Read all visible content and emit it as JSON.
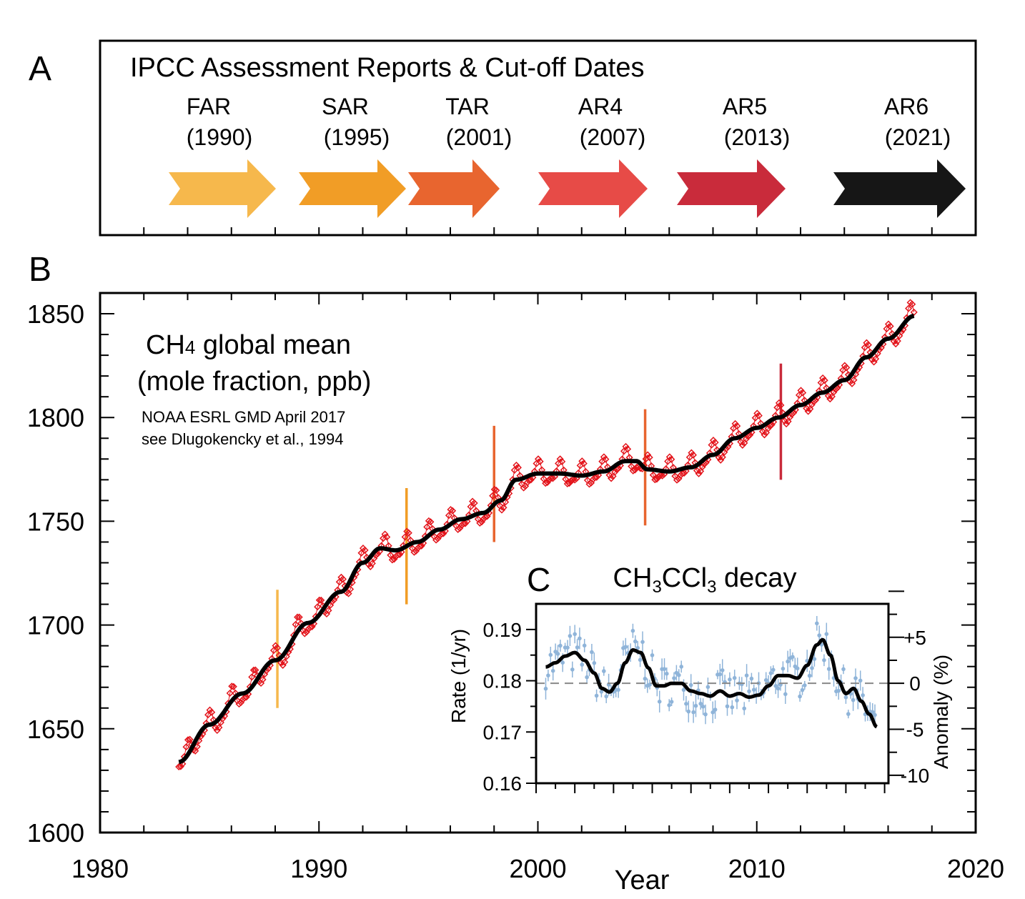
{
  "panel_letters": {
    "a": "A",
    "b": "B",
    "c": "C"
  },
  "panel_a": {
    "title": "IPCC Assessment Reports & Cut-off Dates",
    "reports": [
      {
        "name": "FAR",
        "year_label": "(1990)",
        "color": "#f6b84c"
      },
      {
        "name": "SAR",
        "year_label": "(1995)",
        "color": "#f19d26"
      },
      {
        "name": "TAR",
        "year_label": "(2001)",
        "color": "#e8652f"
      },
      {
        "name": "AR4",
        "year_label": "(2007)",
        "color": "#e74b47"
      },
      {
        "name": "AR5",
        "year_label": "(2013)",
        "color": "#c92b3b"
      },
      {
        "name": "AR6",
        "year_label": "(2021)",
        "color": "#161616"
      }
    ]
  },
  "chart_data": [
    {
      "type": "line",
      "title_main": "CH",
      "title_sub": "4",
      "title_rest": " global mean",
      "subtitle": "(mole fraction, ppb)",
      "notes": [
        "NOAA ESRL GMD April 2017",
        "see Dlugokencky et al., 1994"
      ],
      "xlabel": "Year",
      "xlim": [
        1980,
        2020
      ],
      "ylim": [
        1600,
        1860
      ],
      "x_ticks": [
        1980,
        1990,
        2000,
        2010,
        2020
      ],
      "y_ticks": [
        1600,
        1650,
        1700,
        1750,
        1800,
        1850
      ],
      "colors": {
        "monthly": "#e3141b",
        "trend": "#000000"
      },
      "trend_knots": {
        "x": [
          1983.6,
          1985,
          1986.5,
          1988,
          1989.5,
          1991,
          1992,
          1992.8,
          1993.5,
          1994.5,
          1995.5,
          1996.5,
          1997.5,
          1998.3,
          1999,
          2000,
          2001,
          2002,
          2003,
          2004,
          2004.5,
          2005,
          2006,
          2007,
          2008,
          2009,
          2010,
          2011,
          2012,
          2013,
          2014,
          2015,
          2016,
          2017.2
        ],
        "y": [
          1634,
          1652,
          1667,
          1683,
          1701,
          1716,
          1730,
          1737,
          1736,
          1740,
          1746,
          1751,
          1754,
          1760,
          1770,
          1773,
          1773,
          1772,
          1774,
          1779,
          1779,
          1775,
          1774,
          1776,
          1782,
          1790,
          1795,
          1800,
          1806,
          1812,
          1818,
          1829,
          1838,
          1849
        ]
      },
      "cutoff_markers": [
        {
          "x": 1988.1,
          "y_from": 1660,
          "y_to": 1717,
          "color": "#f6b84c"
        },
        {
          "x": 1994.0,
          "y_from": 1710,
          "y_to": 1766,
          "color": "#f19d26"
        },
        {
          "x": 1998.0,
          "y_from": 1740,
          "y_to": 1796,
          "color": "#e8652f"
        },
        {
          "x": 2004.9,
          "y_from": 1748,
          "y_to": 1804,
          "color": "#e8652f"
        },
        {
          "x": 2011.1,
          "y_from": 1770,
          "y_to": 1826,
          "color": "#c92b3b"
        }
      ]
    },
    {
      "type": "line",
      "title_main": "CH",
      "title_sub1": "3",
      "title_mid": "CCl",
      "title_sub2": "3",
      "title_rest": " decay",
      "ylabel_left": "Rate (1/yr)",
      "ylabel_right": "Anomaly (%)",
      "xlim": [
        1998,
        2016.2
      ],
      "ylim": [
        0.16,
        0.195
      ],
      "y_ticks_left": [
        "0.16",
        "0.17",
        "0.18",
        "0.19"
      ],
      "y_ticks_right": [
        "+5",
        "0",
        "-5",
        "-10"
      ],
      "reference_line": 0.1795,
      "colors": {
        "points": "#8fb4d9",
        "smooth": "#000000",
        "reference": "#888888"
      },
      "smooth_series": {
        "x": [
          1998.5,
          1999,
          1999.5,
          2000,
          2000.5,
          2001,
          2001.4,
          2001.8,
          2002.2,
          2002.6,
          2003,
          2003.4,
          2003.8,
          2004.2,
          2004.6,
          2005,
          2005.5,
          2006,
          2006.5,
          2007,
          2007.5,
          2008,
          2008.5,
          2009,
          2009.5,
          2010,
          2010.5,
          2011,
          2011.5,
          2012,
          2012.5,
          2012.8,
          2013.2,
          2013.6,
          2014,
          2014.4,
          2014.8,
          2015.2,
          2015.6
        ],
        "y": [
          0.1827,
          0.1835,
          0.1848,
          0.1855,
          0.184,
          0.1815,
          0.1785,
          0.1778,
          0.1795,
          0.1835,
          0.186,
          0.1855,
          0.1825,
          0.179,
          0.179,
          0.1795,
          0.1795,
          0.178,
          0.1775,
          0.177,
          0.178,
          0.177,
          0.1775,
          0.1768,
          0.1772,
          0.179,
          0.181,
          0.181,
          0.1805,
          0.183,
          0.187,
          0.188,
          0.185,
          0.18,
          0.1775,
          0.1785,
          0.176,
          0.1735,
          0.171
        ]
      }
    }
  ]
}
